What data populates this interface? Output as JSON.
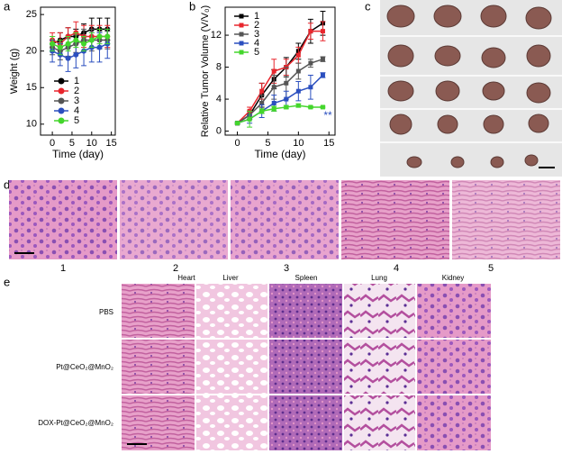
{
  "chart_data": [
    {
      "type": "line",
      "label": "a",
      "xlabel": "Time (day)",
      "ylabel": "Weight (g)",
      "x": [
        0,
        2,
        4,
        6,
        8,
        10,
        12,
        14
      ],
      "xlim": [
        -3,
        16
      ],
      "xticks": [
        0,
        5,
        10,
        15
      ],
      "ylim": [
        8.5,
        26
      ],
      "yticks": [
        10,
        15,
        20,
        25
      ],
      "marker": "circle",
      "legend": "lower left",
      "series": [
        {
          "name": "1",
          "color": "#000000",
          "values": [
            21,
            21.5,
            22,
            22,
            22.5,
            23,
            23,
            23
          ],
          "errors": [
            1,
            1,
            1.2,
            1,
            1.2,
            1.5,
            1.5,
            1.5
          ]
        },
        {
          "name": "2",
          "color": "#e8262d",
          "values": [
            21.5,
            21,
            22,
            22.5,
            22,
            22,
            22,
            22
          ],
          "errors": [
            1,
            1.5,
            1.2,
            1.5,
            1.5,
            1.5,
            1.5,
            1.5
          ]
        },
        {
          "name": "3",
          "color": "#555555",
          "values": [
            20.5,
            20,
            20.5,
            21,
            21.5,
            21.5,
            21.5,
            21.5
          ],
          "errors": [
            1,
            1.2,
            1.2,
            1.2,
            1.5,
            1.5,
            1.2,
            1.2
          ]
        },
        {
          "name": "4",
          "color": "#2b4fbf",
          "values": [
            20,
            19.5,
            19,
            19.5,
            20,
            20.5,
            20.5,
            21
          ],
          "errors": [
            1.5,
            1.5,
            1.8,
            1.8,
            2,
            2,
            2,
            2
          ]
        },
        {
          "name": "5",
          "color": "#44d62c",
          "values": [
            21,
            20.5,
            21,
            21.5,
            21,
            21.5,
            22,
            22
          ],
          "errors": [
            1,
            1,
            1,
            1,
            1,
            1,
            1,
            1
          ]
        }
      ]
    },
    {
      "type": "line",
      "label": "b",
      "xlabel": "Time (day)",
      "ylabel": "Relative Tumor Volume (V/V₀)",
      "x": [
        0,
        2,
        4,
        6,
        8,
        10,
        12,
        14
      ],
      "xlim": [
        -2,
        16
      ],
      "xticks": [
        0,
        5,
        10,
        15
      ],
      "ylim": [
        -0.5,
        15.5
      ],
      "yticks": [
        0,
        4,
        8,
        12
      ],
      "marker": "square",
      "legend": "upper left",
      "annotation": "**",
      "series": [
        {
          "name": "1",
          "color": "#000000",
          "values": [
            1,
            2,
            4.5,
            6.5,
            8,
            10,
            12.5,
            13.5
          ],
          "errors": [
            0.1,
            0.5,
            1.5,
            1.2,
            1.2,
            1,
            1.5,
            1.5
          ]
        },
        {
          "name": "2",
          "color": "#e8262d",
          "values": [
            1,
            2.5,
            5,
            7.5,
            8,
            9.5,
            12.5,
            12.5
          ],
          "errors": [
            0.1,
            0.5,
            1,
            1.5,
            1,
            1,
            1,
            1.2
          ]
        },
        {
          "name": "3",
          "color": "#555555",
          "values": [
            1,
            2,
            3.5,
            5.5,
            6,
            7.5,
            8.5,
            9
          ],
          "errors": [
            0.1,
            0.5,
            1,
            1.5,
            2,
            1,
            0.5,
            0.3
          ]
        },
        {
          "name": "4",
          "color": "#2b4fbf",
          "values": [
            1,
            1.5,
            2.5,
            3.5,
            4,
            5,
            5.5,
            7
          ],
          "errors": [
            0.1,
            0.5,
            0.8,
            1,
            1,
            1.2,
            1.5,
            0.3
          ]
        },
        {
          "name": "5",
          "color": "#44d62c",
          "values": [
            1,
            1.5,
            2.5,
            2.8,
            3,
            3.2,
            3,
            3
          ],
          "errors": [
            0.1,
            1,
            0.3,
            0.3,
            0.2,
            0.2,
            0.1,
            0.1
          ]
        }
      ]
    }
  ],
  "photo_panel": {
    "label": "c"
  },
  "histology_panel": {
    "label": "d",
    "groups": [
      "1",
      "2",
      "3",
      "4",
      "5"
    ]
  },
  "organ_panel": {
    "label": "e",
    "columns": [
      "Heart",
      "Liver",
      "Spleen",
      "Lung",
      "Kidney"
    ],
    "rows": [
      "PBS",
      "Pt@CeO₂@MnO₂",
      "DOX-Pt@CeO₂@MnO₂"
    ]
  }
}
